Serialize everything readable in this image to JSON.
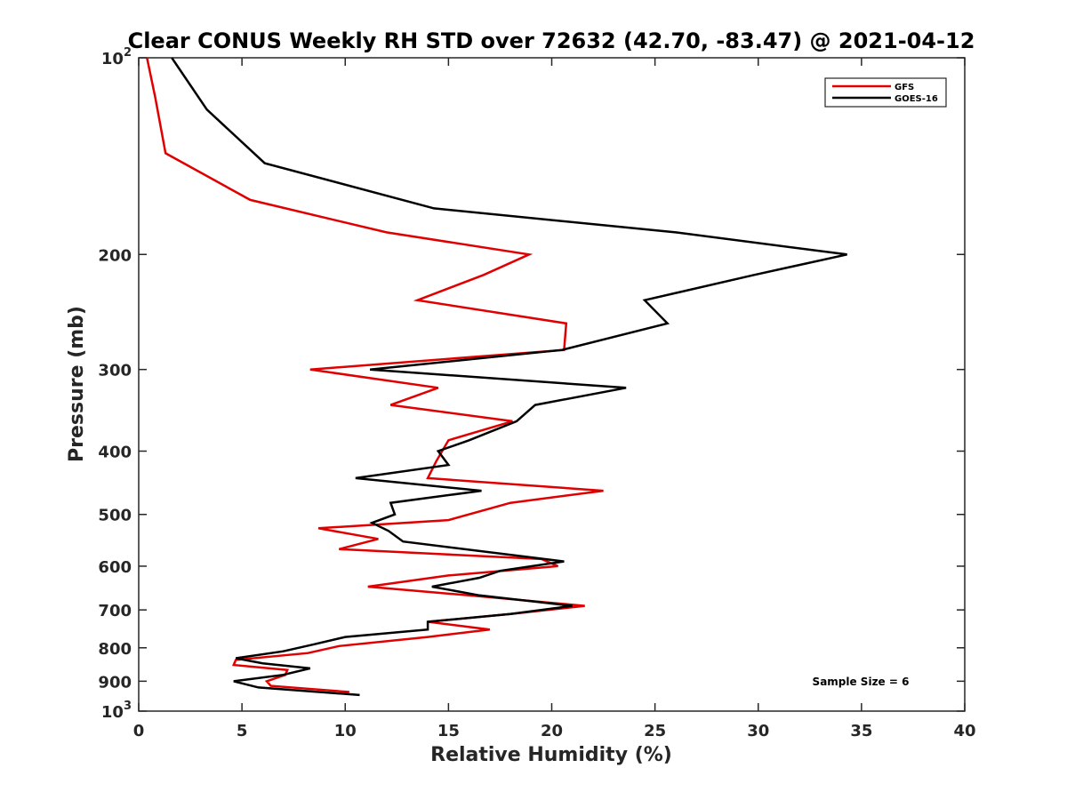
{
  "chart_data": {
    "type": "line",
    "title": "Clear CONUS Weekly RH STD over 72632 (42.70, -83.47) @ 2021-04-12",
    "xlabel": "Relative Humidity (%)",
    "ylabel": "Pressure (mb)",
    "xlim": [
      0,
      40
    ],
    "ylim": [
      100,
      1000
    ],
    "yscale": "log",
    "y_reversed": true,
    "x_ticks": [
      "0",
      "5",
      "10",
      "15",
      "20",
      "25",
      "30",
      "35",
      "40"
    ],
    "y_ticks": [
      {
        "value": 100,
        "base": "10",
        "exp": "2"
      },
      {
        "value": 200,
        "base": "200",
        "exp": ""
      },
      {
        "value": 300,
        "base": "300",
        "exp": ""
      },
      {
        "value": 400,
        "base": "400",
        "exp": ""
      },
      {
        "value": 500,
        "base": "500",
        "exp": ""
      },
      {
        "value": 600,
        "base": "600",
        "exp": ""
      },
      {
        "value": 700,
        "base": "700",
        "exp": ""
      },
      {
        "value": 800,
        "base": "800",
        "exp": ""
      },
      {
        "value": 900,
        "base": "900",
        "exp": ""
      },
      {
        "value": 1000,
        "base": "10",
        "exp": "3"
      }
    ],
    "grid": false,
    "legend_position": "top-right",
    "annotation": "Sample Size = 6",
    "series": [
      {
        "name": "GFS",
        "color": "#e00000",
        "points": [
          [
            0.4,
            100
          ],
          [
            0.8,
            115
          ],
          [
            1.3,
            140
          ],
          [
            5.4,
            165
          ],
          [
            12,
            185
          ],
          [
            18.9,
            200
          ],
          [
            16.7,
            215
          ],
          [
            13.5,
            235
          ],
          [
            20.7,
            255
          ],
          [
            20.6,
            280
          ],
          [
            8.3,
            300
          ],
          [
            14.5,
            320
          ],
          [
            12.2,
            340
          ],
          [
            18.1,
            360
          ],
          [
            15.0,
            385
          ],
          [
            14.4,
            415
          ],
          [
            14.0,
            440
          ],
          [
            22.5,
            460
          ],
          [
            18.0,
            480
          ],
          [
            15.0,
            510
          ],
          [
            8.7,
            525
          ],
          [
            11.6,
            545
          ],
          [
            9.7,
            565
          ],
          [
            19.5,
            585
          ],
          [
            20.3,
            600
          ],
          [
            15.0,
            620
          ],
          [
            11.1,
            645
          ],
          [
            16.0,
            665
          ],
          [
            21.6,
            690
          ],
          [
            18.0,
            710
          ],
          [
            14.0,
            730
          ],
          [
            17.0,
            750
          ],
          [
            14.0,
            770
          ],
          [
            9.7,
            795
          ],
          [
            8.2,
            815
          ],
          [
            4.7,
            835
          ],
          [
            4.6,
            850
          ],
          [
            7.2,
            865
          ],
          [
            7.1,
            880
          ],
          [
            6.2,
            900
          ],
          [
            6.4,
            915
          ],
          [
            10.2,
            935
          ]
        ]
      },
      {
        "name": "GOES-16",
        "color": "#000000",
        "points": [
          [
            1.6,
            100
          ],
          [
            3.3,
            120
          ],
          [
            6.1,
            145
          ],
          [
            14.3,
            170
          ],
          [
            26,
            185
          ],
          [
            34.3,
            200
          ],
          [
            29.8,
            215
          ],
          [
            24.5,
            235
          ],
          [
            25.6,
            255
          ],
          [
            20.5,
            280
          ],
          [
            11.2,
            300
          ],
          [
            23.6,
            320
          ],
          [
            19.2,
            340
          ],
          [
            18.3,
            360
          ],
          [
            16.0,
            385
          ],
          [
            14.5,
            400
          ],
          [
            15.0,
            420
          ],
          [
            10.5,
            440
          ],
          [
            16.6,
            460
          ],
          [
            12.2,
            480
          ],
          [
            12.4,
            500
          ],
          [
            11.3,
            515
          ],
          [
            12.1,
            530
          ],
          [
            12.8,
            550
          ],
          [
            20.6,
            590
          ],
          [
            17.5,
            610
          ],
          [
            16.5,
            625
          ],
          [
            14.2,
            645
          ],
          [
            16.5,
            665
          ],
          [
            21.0,
            690
          ],
          [
            18.0,
            710
          ],
          [
            14.0,
            730
          ],
          [
            14.0,
            750
          ],
          [
            10.0,
            770
          ],
          [
            8.5,
            790
          ],
          [
            7.0,
            810
          ],
          [
            4.7,
            830
          ],
          [
            6.0,
            845
          ],
          [
            8.3,
            860
          ],
          [
            7.0,
            880
          ],
          [
            4.6,
            900
          ],
          [
            5.8,
            920
          ],
          [
            10.7,
            945
          ]
        ]
      }
    ]
  }
}
